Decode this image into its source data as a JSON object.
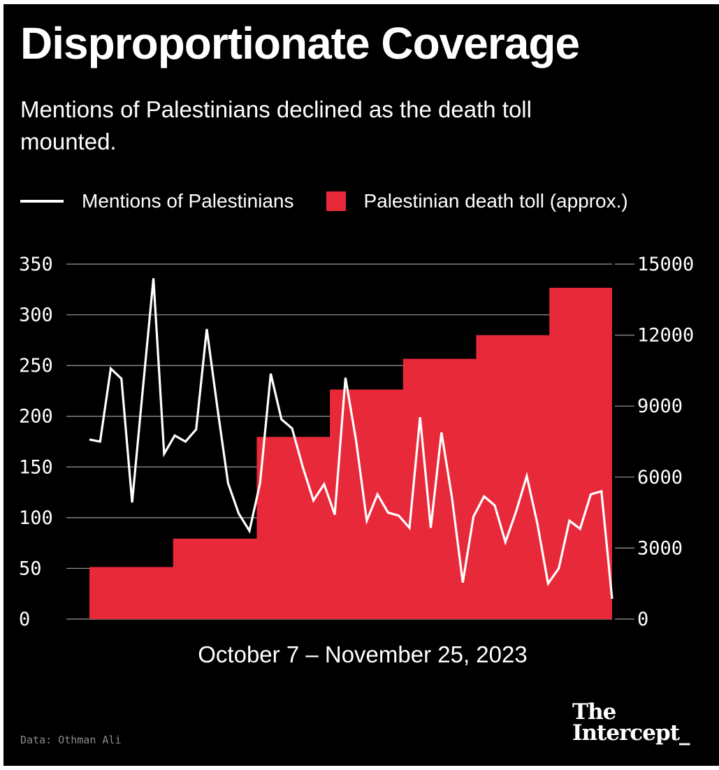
{
  "title": "Disproportionate Coverage",
  "subtitle": "Mentions of Palestinians declined as the death toll mounted.",
  "source": "Data: Othman Ali",
  "logo": {
    "line1": "The",
    "line2": "Intercept_"
  },
  "colors": {
    "background": "#000000",
    "mentions_line": "#ffffff",
    "death_toll_area": "#e8293a",
    "axis": "#9a9a9a"
  },
  "chart_data": {
    "type": "line",
    "xlabel": "October 7 – November 25, 2023",
    "legend": [
      {
        "label": "Mentions of Palestinians",
        "marker": "line",
        "color": "#ffffff"
      },
      {
        "label": "Palestinian death toll (approx.)",
        "marker": "area",
        "color": "#e8293a"
      }
    ],
    "legend_placement": "top-left",
    "y_left": {
      "ylim": [
        0,
        350
      ],
      "ticks": [
        "0",
        "50",
        "100",
        "150",
        "200",
        "250",
        "300",
        "350"
      ]
    },
    "y_right": {
      "ylim": [
        0,
        15000
      ],
      "ticks": [
        "0",
        "3000",
        "6000",
        "9000",
        "12000",
        "15000"
      ]
    },
    "grid": "horizontal (left axis)",
    "series": [
      {
        "name": "Mentions of Palestinians",
        "type": "line",
        "axis": "left",
        "values": [
          177,
          175,
          247,
          237,
          115,
          226,
          336,
          163,
          181,
          175,
          187,
          286,
          208,
          134,
          104,
          87,
          134,
          242,
          197,
          188,
          150,
          117,
          133,
          103,
          238,
          176,
          97,
          123,
          105,
          102,
          90,
          199,
          90,
          184,
          119,
          36,
          101,
          121,
          112,
          76,
          106,
          141,
          94,
          35,
          50,
          97,
          89,
          123,
          126,
          20
        ]
      },
      {
        "name": "Palestinian death toll (approx.)",
        "type": "area",
        "axis": "right",
        "values": [
          2200,
          2200,
          2200,
          2200,
          2200,
          2200,
          2200,
          2200,
          3400,
          3400,
          3400,
          3400,
          3400,
          3400,
          3400,
          3400,
          7700,
          7700,
          7700,
          7700,
          7700,
          7700,
          7700,
          9700,
          9700,
          9700,
          9700,
          9700,
          9700,
          9700,
          11000,
          11000,
          11000,
          11000,
          11000,
          11000,
          11000,
          12000,
          12000,
          12000,
          12000,
          12000,
          12000,
          12000,
          14000,
          14000,
          14000,
          14000,
          14000,
          14000
        ]
      }
    ]
  }
}
